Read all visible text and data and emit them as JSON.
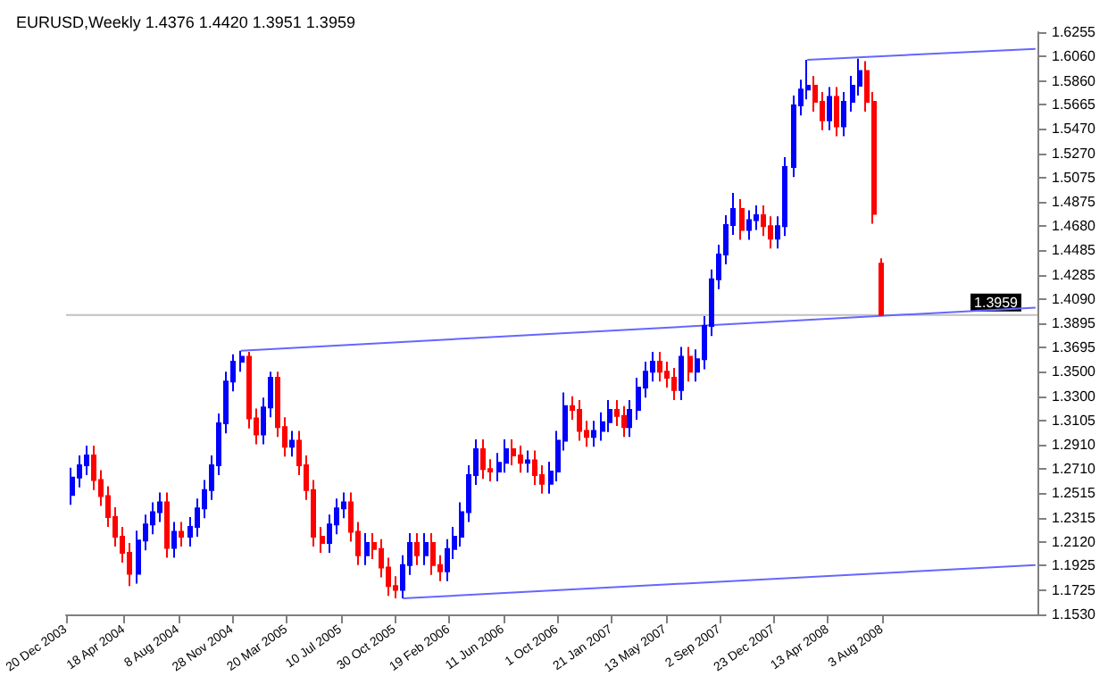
{
  "chart_data": {
    "type": "candlestick",
    "title": "EURUSD,Weekly 1.4376 1.4420 1.3951 1.3959",
    "colors": [
      "#0000ff",
      "#0000ff",
      "#0000ff",
      "#ff0000",
      "#ff0000",
      "#ff0000",
      "#ff0000",
      "#ff0000",
      "#ff0000",
      "#0000ff",
      "#0000ff",
      "#0000ff",
      "#0000ff",
      "#ff0000",
      "#0000ff",
      "#ff0000",
      "#0000ff",
      "#0000ff",
      "#0000ff",
      "#0000ff",
      "#0000ff",
      "#0000ff",
      "#0000ff",
      "#0000ff",
      "#ff0000",
      "#ff0000",
      "#0000ff",
      "#0000ff",
      "#ff0000",
      "#ff0000",
      "#0000ff",
      "#ff0000",
      "#ff0000",
      "#ff0000",
      "#ff0000",
      "#0000ff",
      "#0000ff",
      "#0000ff",
      "#ff0000",
      "#ff0000",
      "#0000ff",
      "#ff0000",
      "#ff0000",
      "#ff0000",
      "#ff0000",
      "#0000ff",
      "#0000ff",
      "#ff0000",
      "#0000ff",
      "#ff0000",
      "#ff0000",
      "#0000ff",
      "#0000ff",
      "#0000ff",
      "#0000ff",
      "#0000ff",
      "#ff0000",
      "#ff0000",
      "#0000ff",
      "#0000ff",
      "#ff0000",
      "#ff0000",
      "#0000ff",
      "#ff0000",
      "#ff0000",
      "#0000ff",
      "#0000ff",
      "#0000ff",
      "#ff0000",
      "#ff0000",
      "#ff0000",
      "#0000ff",
      "#0000ff",
      "#0000ff",
      "#ff0000",
      "#ff0000",
      "#0000ff",
      "#0000ff",
      "#0000ff",
      "#0000ff",
      "#ff0000",
      "#ff0000",
      "#ff0000",
      "#0000ff",
      "#ff0000",
      "#0000ff",
      "#0000ff",
      "#0000ff",
      "#0000ff",
      "#0000ff",
      "#0000ff",
      "#ff0000",
      "#0000ff",
      "#0000ff",
      "#ff0000",
      "#ff0000",
      "#0000ff",
      "#0000ff",
      "#0000ff",
      "#0000ff",
      "#0000ff",
      "#ff0000",
      "#ff0000",
      "#0000ff",
      "#ff0000",
      "#0000ff",
      "#0000ff",
      "#0000ff",
      "#ff0000",
      "#ff0000",
      "#ff0000"
    ],
    "x": [
      "2004-01-01",
      "2004-01-16",
      "2004-02-01",
      "2004-02-16",
      "2004-03-01",
      "2004-03-16",
      "2004-04-01",
      "2004-04-16",
      "2004-05-01",
      "2004-05-16",
      "2004-06-01",
      "2004-06-16",
      "2004-07-01",
      "2004-07-16",
      "2004-08-01",
      "2004-08-16",
      "2004-09-01",
      "2004-09-16",
      "2004-10-01",
      "2004-10-16",
      "2004-11-01",
      "2004-11-16",
      "2004-12-01",
      "2004-12-16",
      "2005-01-01",
      "2005-01-16",
      "2005-02-01",
      "2005-02-16",
      "2005-03-01",
      "2005-03-16",
      "2005-04-01",
      "2005-04-16",
      "2005-05-01",
      "2005-05-16",
      "2005-06-01",
      "2005-06-16",
      "2005-07-01",
      "2005-07-16",
      "2005-08-01",
      "2005-08-16",
      "2005-09-01",
      "2005-09-16",
      "2005-10-01",
      "2005-10-16",
      "2005-11-01",
      "2005-11-16",
      "2005-12-01",
      "2005-12-16",
      "2006-01-01",
      "2006-01-16",
      "2006-02-01",
      "2006-02-16",
      "2006-03-01",
      "2006-03-16",
      "2006-04-01",
      "2006-04-16",
      "2006-05-01",
      "2006-05-16",
      "2006-06-01",
      "2006-06-16",
      "2006-07-01",
      "2006-07-16",
      "2006-08-01",
      "2006-08-16",
      "2006-09-01",
      "2006-09-16",
      "2006-10-01",
      "2006-10-16",
      "2006-11-01",
      "2006-11-16",
      "2006-12-01",
      "2006-12-16",
      "2007-01-01",
      "2007-01-16",
      "2007-02-01",
      "2007-02-16",
      "2007-03-01",
      "2007-03-16",
      "2007-04-01",
      "2007-04-16",
      "2007-05-01",
      "2007-05-16",
      "2007-06-01",
      "2007-06-16",
      "2007-07-01",
      "2007-07-16",
      "2007-08-01",
      "2007-08-16",
      "2007-09-01",
      "2007-09-16",
      "2007-10-01",
      "2007-10-16",
      "2007-11-01",
      "2007-11-16",
      "2007-12-01",
      "2007-12-16",
      "2008-01-01",
      "2008-01-16",
      "2008-02-01",
      "2008-02-16",
      "2008-03-01",
      "2008-03-16",
      "2008-04-01",
      "2008-04-16",
      "2008-05-01",
      "2008-05-16",
      "2008-06-01",
      "2008-06-16",
      "2008-07-01",
      "2008-07-16",
      "2008-08-01"
    ],
    "ohlc": [
      [
        1.25,
        1.272,
        1.242,
        1.264
      ],
      [
        1.264,
        1.282,
        1.256,
        1.274
      ],
      [
        1.274,
        1.29,
        1.266,
        1.282
      ],
      [
        1.282,
        1.29,
        1.254,
        1.262
      ],
      [
        1.262,
        1.27,
        1.241,
        1.249
      ],
      [
        1.249,
        1.257,
        1.224,
        1.232
      ],
      [
        1.232,
        1.24,
        1.208,
        1.216
      ],
      [
        1.216,
        1.224,
        1.195,
        1.203
      ],
      [
        1.203,
        1.211,
        1.176,
        1.186
      ],
      [
        1.186,
        1.221,
        1.178,
        1.213
      ],
      [
        1.213,
        1.234,
        1.205,
        1.226
      ],
      [
        1.226,
        1.244,
        1.218,
        1.236
      ],
      [
        1.236,
        1.252,
        1.228,
        1.244
      ],
      [
        1.244,
        1.252,
        1.199,
        1.207
      ],
      [
        1.207,
        1.228,
        1.199,
        1.22
      ],
      [
        1.22,
        1.228,
        1.208,
        1.216
      ],
      [
        1.216,
        1.232,
        1.208,
        1.224
      ],
      [
        1.224,
        1.247,
        1.216,
        1.239
      ],
      [
        1.239,
        1.262,
        1.231,
        1.254
      ],
      [
        1.254,
        1.282,
        1.246,
        1.274
      ],
      [
        1.274,
        1.316,
        1.266,
        1.308
      ],
      [
        1.308,
        1.35,
        1.3,
        1.342
      ],
      [
        1.342,
        1.364,
        1.334,
        1.358
      ],
      [
        1.358,
        1.367,
        1.35,
        1.362
      ],
      [
        1.362,
        1.366,
        1.304,
        1.312
      ],
      [
        1.312,
        1.32,
        1.291,
        1.299
      ],
      [
        1.299,
        1.329,
        1.291,
        1.321
      ],
      [
        1.321,
        1.35,
        1.313,
        1.345
      ],
      [
        1.345,
        1.35,
        1.297,
        1.305
      ],
      [
        1.305,
        1.313,
        1.281,
        1.289
      ],
      [
        1.289,
        1.302,
        1.281,
        1.294
      ],
      [
        1.294,
        1.302,
        1.266,
        1.274
      ],
      [
        1.274,
        1.282,
        1.246,
        1.254
      ],
      [
        1.254,
        1.262,
        1.208,
        1.216
      ],
      [
        1.216,
        1.224,
        1.203,
        1.211
      ],
      [
        1.211,
        1.234,
        1.203,
        1.226
      ],
      [
        1.226,
        1.247,
        1.218,
        1.239
      ],
      [
        1.239,
        1.252,
        1.231,
        1.244
      ],
      [
        1.244,
        1.252,
        1.212,
        1.22
      ],
      [
        1.22,
        1.228,
        1.193,
        1.201
      ],
      [
        1.201,
        1.219,
        1.193,
        1.211
      ],
      [
        1.211,
        1.219,
        1.198,
        1.206
      ],
      [
        1.206,
        1.214,
        1.183,
        1.191
      ],
      [
        1.191,
        1.199,
        1.168,
        1.176
      ],
      [
        1.176,
        1.184,
        1.166,
        1.173
      ],
      [
        1.173,
        1.201,
        1.166,
        1.193
      ],
      [
        1.193,
        1.219,
        1.185,
        1.211
      ],
      [
        1.211,
        1.219,
        1.193,
        1.201
      ],
      [
        1.201,
        1.219,
        1.193,
        1.211
      ],
      [
        1.211,
        1.219,
        1.185,
        1.193
      ],
      [
        1.193,
        1.201,
        1.18,
        1.188
      ],
      [
        1.188,
        1.214,
        1.18,
        1.206
      ],
      [
        1.206,
        1.224,
        1.198,
        1.216
      ],
      [
        1.216,
        1.244,
        1.208,
        1.236
      ],
      [
        1.236,
        1.274,
        1.228,
        1.266
      ],
      [
        1.266,
        1.295,
        1.258,
        1.287
      ],
      [
        1.287,
        1.295,
        1.263,
        1.271
      ],
      [
        1.271,
        1.279,
        1.261,
        1.269
      ],
      [
        1.269,
        1.284,
        1.261,
        1.276
      ],
      [
        1.276,
        1.295,
        1.268,
        1.287
      ],
      [
        1.287,
        1.295,
        1.274,
        1.282
      ],
      [
        1.282,
        1.29,
        1.268,
        1.276
      ],
      [
        1.276,
        1.286,
        1.268,
        1.278
      ],
      [
        1.278,
        1.286,
        1.258,
        1.266
      ],
      [
        1.266,
        1.274,
        1.251,
        1.259
      ],
      [
        1.259,
        1.277,
        1.251,
        1.269
      ],
      [
        1.269,
        1.302,
        1.261,
        1.294
      ],
      [
        1.294,
        1.333,
        1.286,
        1.322
      ],
      [
        1.322,
        1.33,
        1.311,
        1.319
      ],
      [
        1.319,
        1.327,
        1.294,
        1.302
      ],
      [
        1.302,
        1.31,
        1.289,
        1.297
      ],
      [
        1.297,
        1.31,
        1.289,
        1.302
      ],
      [
        1.302,
        1.317,
        1.294,
        1.309
      ],
      [
        1.309,
        1.327,
        1.301,
        1.319
      ],
      [
        1.319,
        1.327,
        1.306,
        1.314
      ],
      [
        1.314,
        1.322,
        1.297,
        1.305
      ],
      [
        1.305,
        1.327,
        1.297,
        1.319
      ],
      [
        1.319,
        1.345,
        1.311,
        1.337
      ],
      [
        1.337,
        1.358,
        1.329,
        1.35
      ],
      [
        1.35,
        1.366,
        1.342,
        1.358
      ],
      [
        1.358,
        1.366,
        1.342,
        1.35
      ],
      [
        1.35,
        1.358,
        1.337,
        1.345
      ],
      [
        1.345,
        1.353,
        1.327,
        1.335
      ],
      [
        1.335,
        1.37,
        1.327,
        1.362
      ],
      [
        1.362,
        1.37,
        1.342,
        1.35
      ],
      [
        1.35,
        1.368,
        1.342,
        1.36
      ],
      [
        1.36,
        1.395,
        1.352,
        1.387
      ],
      [
        1.387,
        1.433,
        1.379,
        1.425
      ],
      [
        1.425,
        1.453,
        1.417,
        1.445
      ],
      [
        1.445,
        1.477,
        1.437,
        1.469
      ],
      [
        1.469,
        1.495,
        1.461,
        1.482
      ],
      [
        1.482,
        1.49,
        1.457,
        1.465
      ],
      [
        1.465,
        1.481,
        1.457,
        1.473
      ],
      [
        1.473,
        1.485,
        1.465,
        1.477
      ],
      [
        1.477,
        1.485,
        1.46,
        1.468
      ],
      [
        1.468,
        1.476,
        1.45,
        1.458
      ],
      [
        1.458,
        1.476,
        1.45,
        1.468
      ],
      [
        1.468,
        1.524,
        1.46,
        1.516
      ],
      [
        1.516,
        1.574,
        1.508,
        1.566
      ],
      [
        1.566,
        1.587,
        1.558,
        1.579
      ],
      [
        1.579,
        1.603,
        1.571,
        1.582
      ],
      [
        1.582,
        1.59,
        1.561,
        1.569
      ],
      [
        1.569,
        1.577,
        1.546,
        1.554
      ],
      [
        1.554,
        1.581,
        1.546,
        1.573
      ],
      [
        1.573,
        1.581,
        1.541,
        1.549
      ],
      [
        1.549,
        1.577,
        1.541,
        1.569
      ],
      [
        1.569,
        1.59,
        1.561,
        1.582
      ],
      [
        1.582,
        1.604,
        1.574,
        1.594
      ],
      [
        1.594,
        1.602,
        1.561,
        1.569
      ],
      [
        1.569,
        1.577,
        1.47,
        1.478
      ],
      [
        1.4376,
        1.442,
        1.3951,
        1.3959
      ]
    ],
    "series": [
      {
        "type": "line",
        "color": "#6666ff",
        "x": [
          "2004-12-16",
          "2009-06-16"
        ],
        "values": [
          1.367,
          1.402
        ]
      },
      {
        "type": "line",
        "color": "#6666ff",
        "x": [
          "2008-03-01",
          "2009-06-16"
        ],
        "values": [
          1.603,
          1.612
        ]
      },
      {
        "type": "line",
        "color": "#6666ff",
        "x": [
          "2005-11-16",
          "2009-06-16"
        ],
        "values": [
          1.166,
          1.193
        ]
      }
    ],
    "ref_lines": [
      {
        "axis": "y",
        "value": 1.3959,
        "label": "1.3959",
        "color": "#c0c0c0"
      }
    ],
    "xlim": [
      "2003-12-20",
      "2009-06-20"
    ],
    "xticks": [
      {
        "value": "2003-12-20",
        "label": "20 Dec 2003"
      },
      {
        "value": "2004-04-18",
        "label": "18 Apr 2004"
      },
      {
        "value": "2004-08-08",
        "label": "8 Aug 2004"
      },
      {
        "value": "2004-11-28",
        "label": "28 Nov 2004"
      },
      {
        "value": "2005-03-20",
        "label": "20 Mar 2005"
      },
      {
        "value": "2005-07-10",
        "label": "10 Jul 2005"
      },
      {
        "value": "2005-10-30",
        "label": "30 Oct 2005"
      },
      {
        "value": "2006-02-19",
        "label": "19 Feb 2006"
      },
      {
        "value": "2006-06-11",
        "label": "11 Jun 2006"
      },
      {
        "value": "2006-10-01",
        "label": "1 Oct 2006"
      },
      {
        "value": "2007-01-21",
        "label": "21 Jan 2007"
      },
      {
        "value": "2007-05-13",
        "label": "13 May 2007"
      },
      {
        "value": "2007-09-02",
        "label": "2 Sep 2007"
      },
      {
        "value": "2007-12-23",
        "label": "23 Dec 2007"
      },
      {
        "value": "2008-04-13",
        "label": "13 Apr 2008"
      },
      {
        "value": "2008-08-03",
        "label": "3 Aug 2008"
      }
    ],
    "ylim": [
      1.153,
      1.6255
    ],
    "yticks": [
      {
        "value": 1.153,
        "label": "1.1530"
      },
      {
        "value": 1.1725,
        "label": "1.1725"
      },
      {
        "value": 1.1925,
        "label": "1.1925"
      },
      {
        "value": 1.212,
        "label": "1.2120"
      },
      {
        "value": 1.2315,
        "label": "1.2315"
      },
      {
        "value": 1.2515,
        "label": "1.2515"
      },
      {
        "value": 1.271,
        "label": "1.2710"
      },
      {
        "value": 1.291,
        "label": "1.2910"
      },
      {
        "value": 1.3105,
        "label": "1.3105"
      },
      {
        "value": 1.33,
        "label": "1.3300"
      },
      {
        "value": 1.35,
        "label": "1.3500"
      },
      {
        "value": 1.3695,
        "label": "1.3695"
      },
      {
        "value": 1.3895,
        "label": "1.3895"
      },
      {
        "value": 1.409,
        "label": "1.4090"
      },
      {
        "value": 1.4285,
        "label": "1.4285"
      },
      {
        "value": 1.4485,
        "label": "1.4485"
      },
      {
        "value": 1.468,
        "label": "1.4680"
      },
      {
        "value": 1.4875,
        "label": "1.4875"
      },
      {
        "value": 1.5075,
        "label": "1.5075"
      },
      {
        "value": 1.527,
        "label": "1.5270"
      },
      {
        "value": 1.547,
        "label": "1.5470"
      },
      {
        "value": 1.5665,
        "label": "1.5665"
      },
      {
        "value": 1.586,
        "label": "1.5860"
      },
      {
        "value": 1.606,
        "label": "1.6060"
      },
      {
        "value": 1.6255,
        "label": "1.6255"
      }
    ]
  }
}
